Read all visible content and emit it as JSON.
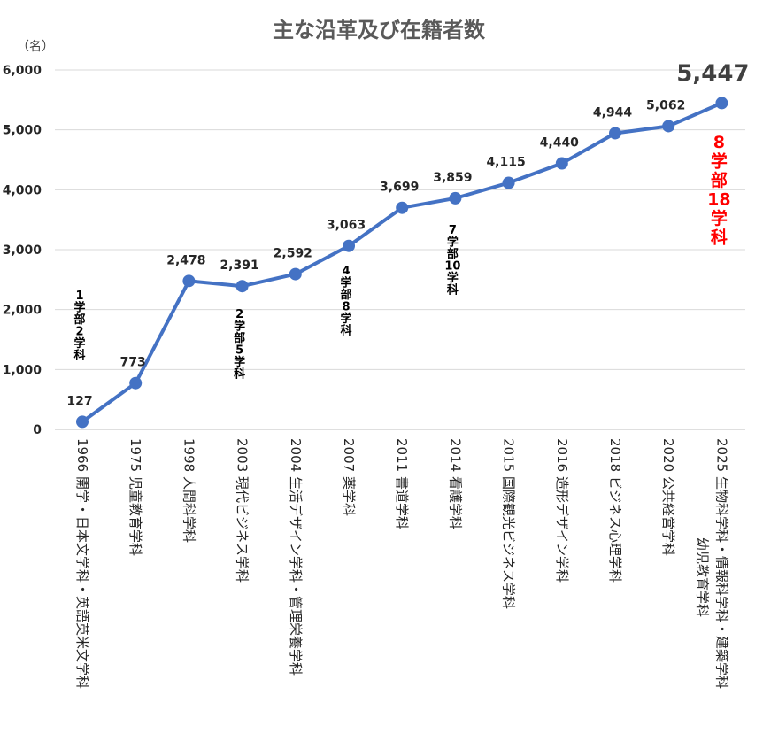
{
  "chart_data": {
    "type": "line",
    "title": "主な沿革及び在籍者数",
    "unit_label": "（名）",
    "ylim": [
      0,
      6000
    ],
    "y_ticks": [
      "0",
      "1,000",
      "2,000",
      "3,000",
      "4,000",
      "5,000",
      "6,000"
    ],
    "y_tick_values": [
      0,
      1000,
      2000,
      3000,
      4000,
      5000,
      6000
    ],
    "grid": true,
    "line_color": "#4472c4",
    "categories": [
      "1966 開学・日本文学科・英語英米文学科",
      "1975 児童教育学科",
      "1998 人間科学科",
      "2003 現代ビジネス学科",
      "2004 生活デザイン学科・管理栄養学科",
      "2007 薬学科",
      "2011 書道学科",
      "2014 看護学科",
      "2015 国際観光ビジネス学科",
      "2016 造形デザイン学科",
      "2018 ビジネス心理学科",
      "2020 公共経営学科",
      "2025 生物科学科・情報科学科・建築学科"
    ],
    "category_continuation": {
      "index": 12,
      "text": "幼児教育学科"
    },
    "values": [
      127,
      773,
      2478,
      2391,
      2592,
      3063,
      3699,
      3859,
      4115,
      4440,
      4944,
      5062,
      5447
    ],
    "value_labels": [
      "127",
      "773",
      "2,478",
      "2,391",
      "2,592",
      "3,063",
      "3,699",
      "3,859",
      "4,115",
      "4,440",
      "4,944",
      "5,062",
      "5,447"
    ],
    "annotations": [
      {
        "index": 0,
        "lines": [
          "1",
          "学",
          "部",
          "2",
          "学",
          "科"
        ],
        "color": "#000000"
      },
      {
        "index": 3,
        "lines": [
          "2",
          "学",
          "部",
          "5",
          "学",
          "科"
        ],
        "color": "#000000"
      },
      {
        "index": 5,
        "lines": [
          "4",
          "学",
          "部",
          "8",
          "学",
          "科"
        ],
        "color": "#000000"
      },
      {
        "index": 7,
        "lines": [
          "7",
          "学",
          "部",
          "10",
          "学",
          "科"
        ],
        "color": "#000000"
      },
      {
        "index": 12,
        "lines": [
          "8",
          "学",
          "部",
          "18",
          "学",
          "科"
        ],
        "color": "#ff0000"
      }
    ]
  }
}
